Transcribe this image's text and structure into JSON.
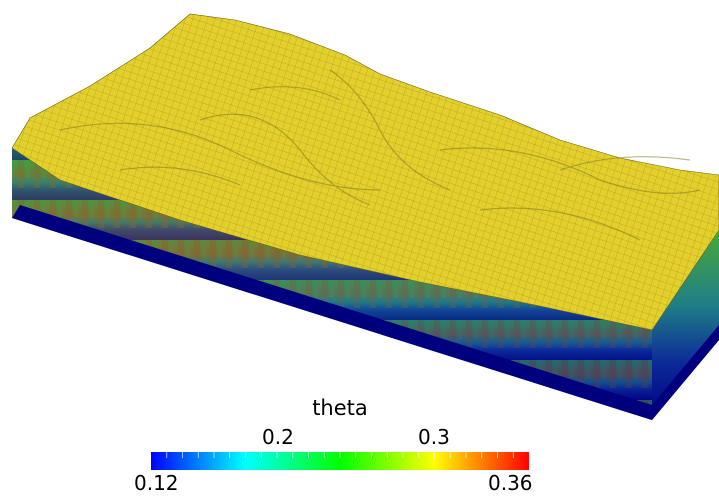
{
  "scene": {
    "description_icon": "3d-terrain-mesh-icon",
    "surface_color": "#e3d02c",
    "mesh_line_color": "#6b5e10",
    "side_colors": [
      "#00007f",
      "#0a2a9a",
      "#0f9a8a",
      "#37b24a",
      "#8a7a36",
      "#a04a22"
    ]
  },
  "colorbar": {
    "title": "theta",
    "min_label": "0.12",
    "max_label": "0.36",
    "tick_02": "0.2",
    "tick_03": "0.3",
    "range": [
      0.12,
      0.36
    ],
    "colors": [
      "#0000ff",
      "#00ffff",
      "#00ff00",
      "#ffff00",
      "#ff0000"
    ]
  }
}
